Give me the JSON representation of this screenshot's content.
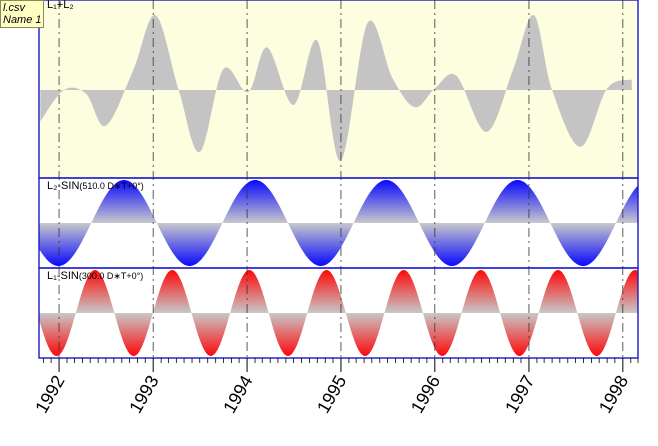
{
  "tooltip": {
    "file": "l.csv",
    "name": "Name 1"
  },
  "chart_data": [
    {
      "type": "area",
      "title": "L₁+L₂",
      "x_range": [
        "1991-10-15",
        "1998-03-01"
      ],
      "ylim": [
        -1.15,
        1.15
      ],
      "fill_color": "#c4c4c4",
      "background": "#fdfde0",
      "series": [
        {
          "x": [
            "1991-10-20",
            "1992-01-20",
            "1992-04-15",
            "1992-06-30",
            "1992-10-15",
            "1993-01-10",
            "1993-04-10",
            "1993-07-01",
            "1993-10-01",
            "1994-01-05",
            "1994-03-20",
            "1994-07-01",
            "1994-10-01",
            "1994-12-30",
            "1995-04-15",
            "1995-07-20",
            "1995-10-15",
            "1996-01-01",
            "1996-03-25",
            "1996-07-20",
            "1996-11-01",
            "1997-01-20",
            "1997-04-01",
            "1997-07-20",
            "1997-11-01",
            "1998-02-05"
          ],
          "values": [
            -0.42,
            0.0,
            -0.05,
            -0.48,
            0.26,
            1.0,
            0.0,
            -0.83,
            0.28,
            -0.03,
            0.57,
            -0.2,
            0.66,
            -0.95,
            0.9,
            0.16,
            -0.23,
            0.02,
            0.19,
            -0.56,
            0.28,
            1.0,
            0.0,
            -0.76,
            0.02,
            0.14
          ]
        }
      ]
    },
    {
      "type": "area",
      "title": "L₂-SIN",
      "title_detail": "(510.0 D∗T+0°)",
      "x_range": [
        "1991-10-15",
        "1998-03-01"
      ],
      "ylim": [
        -1,
        1
      ],
      "period_days": 510,
      "phase_deg": 0,
      "fill_color": "#0000ff"
    },
    {
      "type": "area",
      "title": "L₁-SIN",
      "title_detail": "(300.0 D∗T+0°)",
      "x_range": [
        "1991-10-15",
        "1998-03-01"
      ],
      "ylim": [
        -1,
        1
      ],
      "period_days": 300,
      "phase_deg": 0,
      "fill_color": "#ff0000"
    }
  ],
  "x_ticks": [
    "1992",
    "1993",
    "1994",
    "1995",
    "1996",
    "1997",
    "1998"
  ]
}
